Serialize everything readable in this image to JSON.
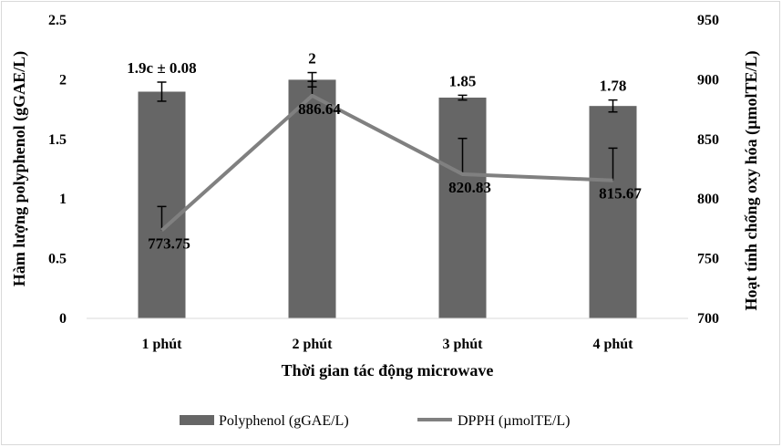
{
  "chart_data": {
    "type": "bar",
    "categories": [
      "1 phút",
      "2 phút",
      "3 phút",
      "4 phút"
    ],
    "series": [
      {
        "name": "Polyphenol (gGAE/L)",
        "kind": "bar",
        "axis": "left",
        "values": [
          1.9,
          2.0,
          1.85,
          1.78
        ],
        "errors": [
          0.08,
          0.06,
          0.02,
          0.05
        ],
        "labels": [
          "1.9c ± 0.08",
          "2",
          "1.85",
          "1.78"
        ],
        "color": "#666666"
      },
      {
        "name": "DPPH (µmolTE/L)",
        "kind": "line",
        "axis": "right",
        "values": [
          773.75,
          886.64,
          820.83,
          815.67
        ],
        "errors": [
          20,
          12,
          30,
          27
        ],
        "labels": [
          "773.75",
          "886.64",
          "820.83",
          "815.67"
        ],
        "color": "#808080"
      }
    ],
    "xlabel": "Thời gian tác động microwave",
    "ylabel": "Hàm lượng polyphenol (gGAE/L)",
    "y2label": "Hoạt tính chống oxy hóa (µmolTE/L)",
    "ylim": [
      0,
      2.5
    ],
    "y2lim": [
      700,
      950
    ],
    "yticks": [
      "0",
      "0.5",
      "1",
      "1.5",
      "2",
      "2.5"
    ],
    "y2ticks": [
      "700",
      "750",
      "800",
      "850",
      "900",
      "950"
    ],
    "grid": false,
    "legend_position": "bottom"
  }
}
